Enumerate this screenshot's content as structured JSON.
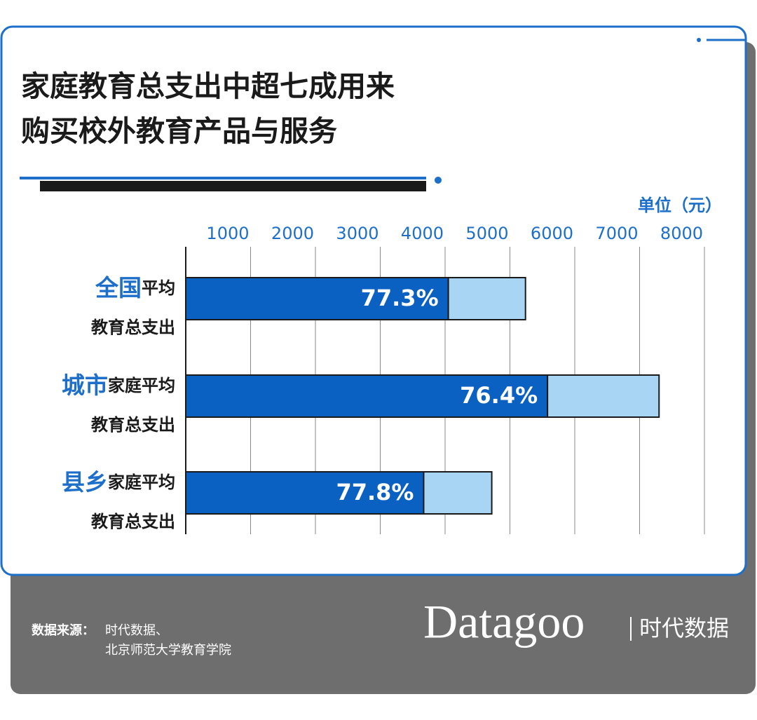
{
  "chart_data": {
    "type": "bar",
    "title": [
      "家庭教育总支出中超七成用来",
      "购买校外教育产品与服务"
    ],
    "unit_label": "单位（元）",
    "categories": [
      {
        "highlight": "全国",
        "text": "平均",
        "line2": "教育总支出"
      },
      {
        "highlight": "城市",
        "text": "家庭平均",
        "line2": "教育总支出"
      },
      {
        "highlight": "县乡",
        "text": "家庭平均",
        "line2": "教育总支出"
      }
    ],
    "series": [
      {
        "color": "#0b61c2",
        "values": [
          4050,
          5580,
          3670
        ],
        "percent_labels": [
          "77.3%",
          "76.4%",
          "77.8%"
        ]
      },
      {
        "color": "#a9d5f5",
        "values": [
          1190,
          1720,
          1050
        ]
      }
    ],
    "xlim": [
      0,
      8000
    ],
    "xticks": [
      1000,
      2000,
      3000,
      4000,
      5000,
      6000,
      7000,
      8000
    ],
    "grid": true,
    "source": {
      "label": "数据来源：",
      "lines": [
        "时代数据、",
        "北京师范大学教育学院"
      ]
    },
    "brand": {
      "name": "Datagoo",
      "text": "时代数据"
    }
  }
}
